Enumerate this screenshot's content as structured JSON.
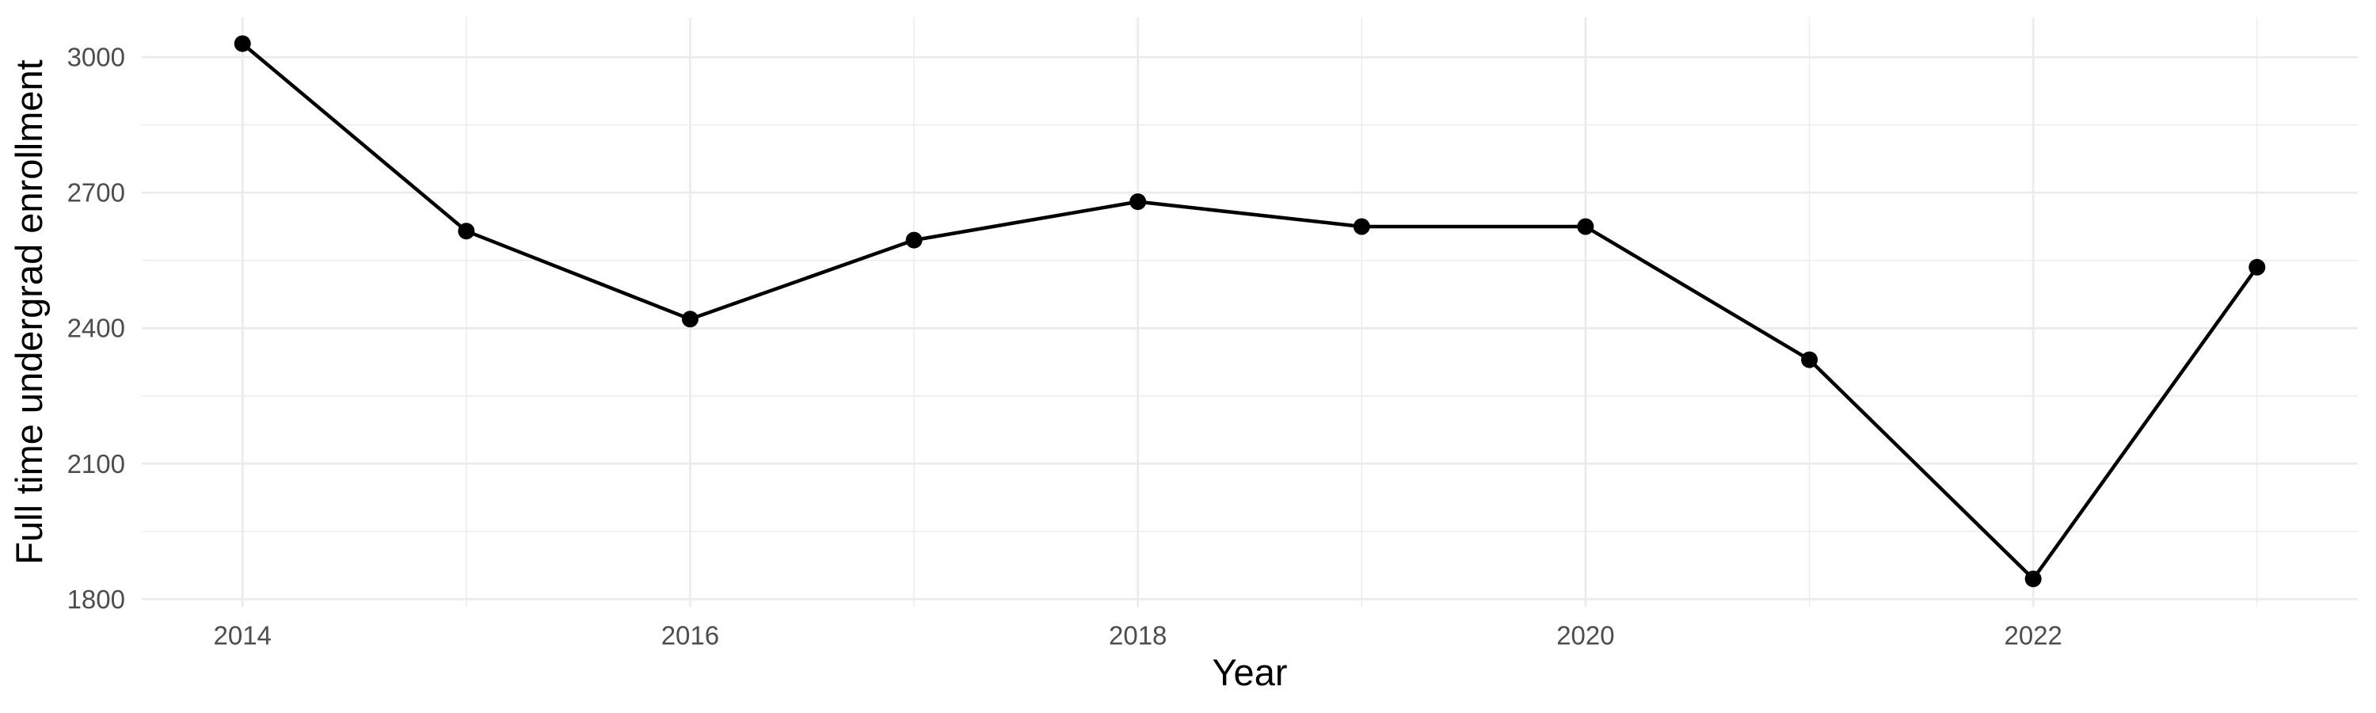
{
  "chart_data": {
    "type": "line",
    "title": "",
    "xlabel": "Year",
    "ylabel": "Full time undergrad enrollment",
    "x": [
      2014,
      2015,
      2016,
      2017,
      2018,
      2019,
      2020,
      2021,
      2022,
      2023
    ],
    "values": [
      3030,
      2615,
      2420,
      2595,
      2680,
      2625,
      2625,
      2330,
      1845,
      2535
    ],
    "x_major_ticks": [
      2014,
      2016,
      2018,
      2020,
      2022
    ],
    "x_minor_ticks": [
      2015,
      2017,
      2019,
      2021,
      2023
    ],
    "y_major_ticks": [
      1800,
      2100,
      2400,
      2700,
      3000
    ],
    "y_minor_ticks": [
      1950,
      2250,
      2550,
      2850
    ],
    "xlim": [
      2013.55,
      2023.45
    ],
    "ylim": [
      1783,
      3088
    ],
    "grid": "major+minor",
    "legend": "none",
    "marker": "filled-circle",
    "colors": {
      "background": "#ffffff",
      "line": "#000000",
      "point": "#000000",
      "grid": "#ebebeb",
      "tick_label": "#4d4d4d",
      "axis_title": "#000000"
    }
  }
}
